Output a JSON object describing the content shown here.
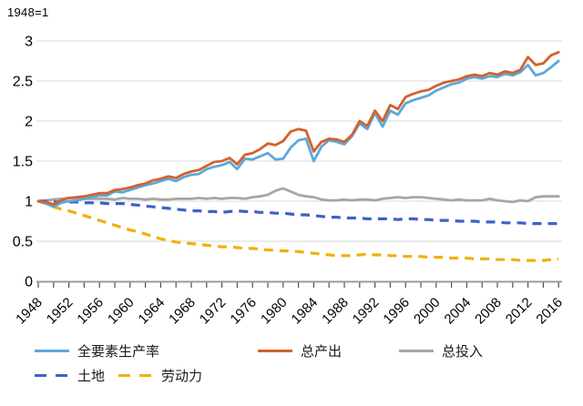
{
  "chart_data": {
    "type": "line",
    "note": "1948=1",
    "x_label": "",
    "y_label": "",
    "ylim": [
      0,
      3
    ],
    "yticks": [
      0,
      0.5,
      1,
      1.5,
      2,
      2.5,
      3
    ],
    "xtick_labels": [
      "1948",
      "1952",
      "1956",
      "1960",
      "1964",
      "1968",
      "1972",
      "1976",
      "1980",
      "1984",
      "1988",
      "1992",
      "1996",
      "2000",
      "2004",
      "2008",
      "2012",
      "2016"
    ],
    "minor_tick_step_years": 2,
    "grid": true,
    "legend_position": "bottom",
    "x": [
      1948,
      1949,
      1950,
      1951,
      1952,
      1953,
      1954,
      1955,
      1956,
      1957,
      1958,
      1959,
      1960,
      1961,
      1962,
      1963,
      1964,
      1965,
      1966,
      1967,
      1968,
      1969,
      1970,
      1971,
      1972,
      1973,
      1974,
      1975,
      1976,
      1977,
      1978,
      1979,
      1980,
      1981,
      1982,
      1983,
      1984,
      1985,
      1986,
      1987,
      1988,
      1989,
      1990,
      1991,
      1992,
      1993,
      1994,
      1995,
      1996,
      1997,
      1998,
      1999,
      2000,
      2001,
      2002,
      2003,
      2004,
      2005,
      2006,
      2007,
      2008,
      2009,
      2010,
      2011,
      2012,
      2013,
      2014,
      2015,
      2016
    ],
    "series": [
      {
        "id": "input",
        "name": "总投入",
        "color": "#A6A6A6",
        "style": "solid",
        "values": [
          1.0,
          1.01,
          1.02,
          1.03,
          1.04,
          1.04,
          1.03,
          1.03,
          1.03,
          1.03,
          1.02,
          1.04,
          1.03,
          1.03,
          1.02,
          1.03,
          1.02,
          1.02,
          1.03,
          1.03,
          1.03,
          1.04,
          1.03,
          1.04,
          1.03,
          1.04,
          1.04,
          1.03,
          1.05,
          1.06,
          1.08,
          1.13,
          1.16,
          1.12,
          1.08,
          1.06,
          1.05,
          1.02,
          1.01,
          1.01,
          1.02,
          1.01,
          1.02,
          1.02,
          1.01,
          1.03,
          1.04,
          1.05,
          1.04,
          1.05,
          1.05,
          1.04,
          1.03,
          1.02,
          1.01,
          1.02,
          1.01,
          1.01,
          1.01,
          1.03,
          1.01,
          1.0,
          0.99,
          1.01,
          1.0,
          1.05,
          1.06,
          1.06,
          1.06
        ]
      },
      {
        "id": "land",
        "name": "土地",
        "color": "#3B63C6",
        "style": "dashed",
        "values": [
          1.0,
          1.0,
          0.99,
          0.99,
          0.99,
          0.99,
          0.98,
          0.98,
          0.98,
          0.97,
          0.97,
          0.97,
          0.96,
          0.95,
          0.94,
          0.93,
          0.92,
          0.91,
          0.9,
          0.89,
          0.88,
          0.88,
          0.87,
          0.87,
          0.86,
          0.87,
          0.88,
          0.87,
          0.87,
          0.86,
          0.86,
          0.85,
          0.85,
          0.84,
          0.83,
          0.83,
          0.82,
          0.81,
          0.8,
          0.8,
          0.79,
          0.79,
          0.79,
          0.78,
          0.78,
          0.78,
          0.78,
          0.77,
          0.78,
          0.78,
          0.77,
          0.77,
          0.76,
          0.76,
          0.76,
          0.75,
          0.75,
          0.75,
          0.74,
          0.74,
          0.74,
          0.73,
          0.73,
          0.73,
          0.72,
          0.72,
          0.72,
          0.72,
          0.72
        ]
      },
      {
        "id": "labor",
        "name": "劳动力",
        "color": "#F2B00C",
        "style": "dashed",
        "values": [
          1.0,
          0.97,
          0.93,
          0.9,
          0.88,
          0.85,
          0.82,
          0.79,
          0.76,
          0.73,
          0.7,
          0.67,
          0.64,
          0.62,
          0.59,
          0.56,
          0.53,
          0.51,
          0.49,
          0.48,
          0.47,
          0.46,
          0.45,
          0.44,
          0.43,
          0.43,
          0.42,
          0.41,
          0.41,
          0.4,
          0.39,
          0.39,
          0.38,
          0.38,
          0.37,
          0.36,
          0.35,
          0.34,
          0.33,
          0.32,
          0.32,
          0.32,
          0.33,
          0.34,
          0.33,
          0.33,
          0.32,
          0.32,
          0.31,
          0.31,
          0.31,
          0.3,
          0.3,
          0.3,
          0.29,
          0.29,
          0.29,
          0.28,
          0.28,
          0.28,
          0.27,
          0.27,
          0.27,
          0.26,
          0.26,
          0.26,
          0.26,
          0.27,
          0.28
        ]
      },
      {
        "id": "tfp",
        "name": "全要素生产率",
        "color": "#5BA8DC",
        "style": "solid",
        "values": [
          1.0,
          0.97,
          0.93,
          0.98,
          1.0,
          1.01,
          1.03,
          1.05,
          1.07,
          1.07,
          1.12,
          1.11,
          1.14,
          1.17,
          1.2,
          1.22,
          1.25,
          1.28,
          1.25,
          1.3,
          1.33,
          1.34,
          1.4,
          1.43,
          1.45,
          1.49,
          1.4,
          1.53,
          1.52,
          1.56,
          1.6,
          1.52,
          1.53,
          1.67,
          1.76,
          1.78,
          1.5,
          1.68,
          1.76,
          1.74,
          1.71,
          1.81,
          1.97,
          1.9,
          2.1,
          1.93,
          2.13,
          2.08,
          2.22,
          2.26,
          2.29,
          2.32,
          2.38,
          2.42,
          2.46,
          2.48,
          2.53,
          2.55,
          2.53,
          2.56,
          2.55,
          2.59,
          2.57,
          2.61,
          2.7,
          2.57,
          2.6,
          2.67,
          2.75
        ]
      },
      {
        "id": "output",
        "name": "总产出",
        "color": "#D2622D",
        "style": "solid",
        "values": [
          1.0,
          0.99,
          0.96,
          1.01,
          1.04,
          1.05,
          1.06,
          1.08,
          1.1,
          1.1,
          1.14,
          1.15,
          1.17,
          1.2,
          1.22,
          1.26,
          1.28,
          1.31,
          1.29,
          1.34,
          1.37,
          1.39,
          1.44,
          1.49,
          1.5,
          1.54,
          1.46,
          1.58,
          1.6,
          1.65,
          1.72,
          1.7,
          1.75,
          1.87,
          1.9,
          1.88,
          1.62,
          1.74,
          1.78,
          1.77,
          1.74,
          1.83,
          2.0,
          1.94,
          2.13,
          2.0,
          2.2,
          2.15,
          2.3,
          2.34,
          2.37,
          2.39,
          2.44,
          2.48,
          2.5,
          2.52,
          2.56,
          2.58,
          2.56,
          2.6,
          2.58,
          2.62,
          2.6,
          2.64,
          2.8,
          2.7,
          2.72,
          2.82,
          2.86
        ]
      }
    ],
    "legend_rows": [
      [
        "tfp",
        "output",
        "input"
      ],
      [
        "land",
        "labor"
      ]
    ]
  }
}
